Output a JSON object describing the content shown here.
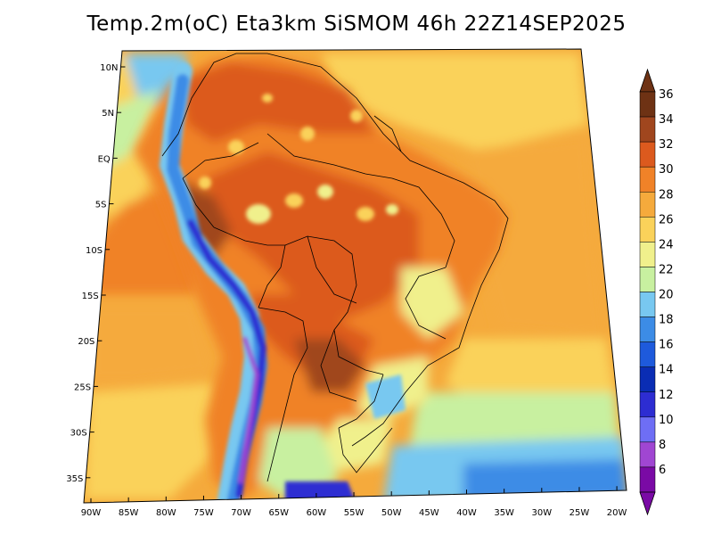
{
  "title": "Temp.2m(oC) Eta3km SiSMOM 46h 22Z14SEP2025",
  "map": {
    "lat_labels": [
      "10N",
      "5N",
      "EQ",
      "5S",
      "10S",
      "15S",
      "20S",
      "25S",
      "30S",
      "35S"
    ],
    "lon_labels": [
      "90W",
      "85W",
      "80W",
      "75W",
      "70W",
      "65W",
      "60W",
      "55W",
      "50W",
      "45W",
      "40W",
      "35W",
      "30W",
      "25W",
      "20W"
    ]
  },
  "colorbar": {
    "unit": "oC",
    "levels": [
      6,
      8,
      10,
      12,
      14,
      16,
      18,
      20,
      22,
      24,
      26,
      28,
      30,
      32,
      34,
      36
    ],
    "colors": [
      "#7a0aa5",
      "#a046d2",
      "#6e6ef5",
      "#2d2dd2",
      "#0a2db4",
      "#1e5adc",
      "#3c8ce6",
      "#78c8f0",
      "#c8f0a0",
      "#f0f08c",
      "#fad25a",
      "#f5aa3c",
      "#f08228",
      "#dc5a1e",
      "#a0461e",
      "#6e3214"
    ],
    "labels": [
      "36",
      "34",
      "32",
      "30",
      "28",
      "26",
      "24",
      "22",
      "20",
      "18",
      "16",
      "14",
      "12",
      "10",
      "8",
      "6"
    ]
  }
}
